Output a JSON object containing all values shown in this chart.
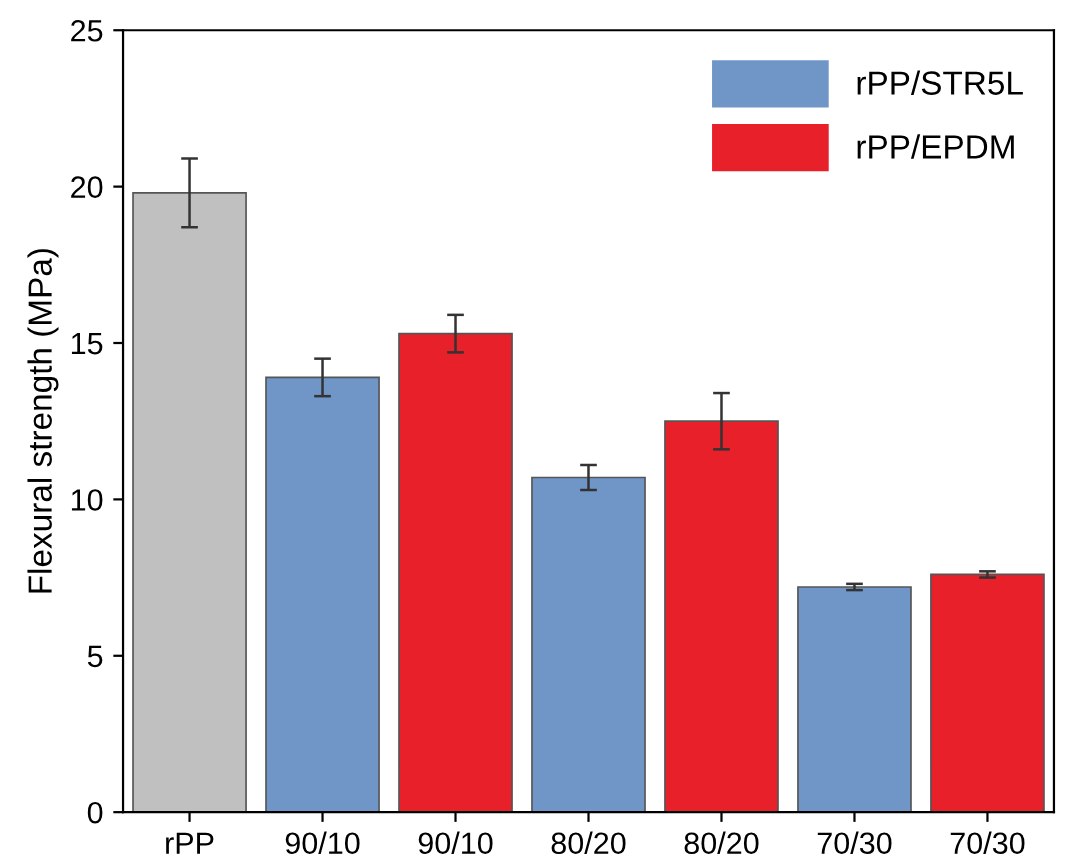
{
  "chart_data": {
    "type": "bar",
    "ylabel": "Flexural strength (MPa)",
    "categories": [
      "rPP",
      "90/10",
      "90/10",
      "80/20",
      "80/20",
      "70/30",
      "70/30"
    ],
    "series": [
      {
        "color": "#c0c0c0",
        "values": [
          19.8,
          null,
          null,
          null,
          null,
          null,
          null
        ],
        "errors": [
          1.1,
          null,
          null,
          null,
          null,
          null,
          null
        ]
      },
      {
        "name": "rPP/STR5L",
        "color": "#7096c8",
        "values": [
          null,
          13.9,
          null,
          10.7,
          null,
          7.2,
          null
        ],
        "errors": [
          null,
          0.6,
          null,
          0.4,
          null,
          0.1,
          null
        ]
      },
      {
        "name": "rPP/EPDM",
        "color": "#e8202a",
        "values": [
          null,
          null,
          15.3,
          null,
          12.5,
          null,
          7.6
        ],
        "errors": [
          null,
          null,
          0.6,
          null,
          0.9,
          null,
          0.1
        ]
      }
    ],
    "ylim": [
      0,
      25
    ],
    "yticks": [
      0,
      5,
      10,
      15,
      20,
      25
    ],
    "legend": "top right"
  }
}
